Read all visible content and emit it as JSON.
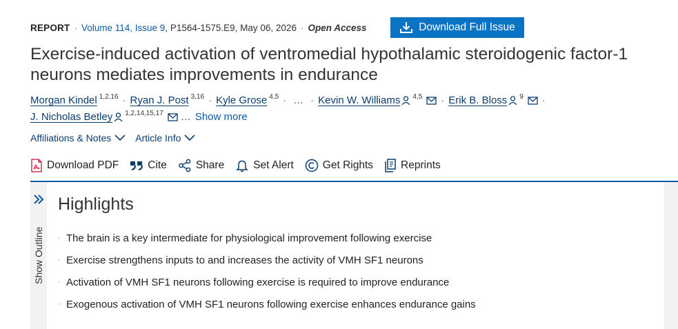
{
  "header": {
    "type_label": "REPORT",
    "volume": "Volume 114, Issue 9",
    "details": "P1564-1575.E9, May 06, 2026",
    "open_access": "Open Access",
    "download_full_issue": "Download Full Issue"
  },
  "article": {
    "title": "Exercise-induced activation of ventromedial hypothalamic steroidogenic factor-1 neurons mediates improvements in endurance"
  },
  "authors": {
    "a1": {
      "name": "Morgan Kindel",
      "sup": "1,2,16"
    },
    "a2": {
      "name": "Ryan J. Post",
      "sup": "3,16"
    },
    "a3": {
      "name": "Kyle Grose",
      "sup": "4,5"
    },
    "ellipsis": "…",
    "a4": {
      "name": "Kevin W. Williams",
      "sup": "4,5"
    },
    "a5": {
      "name": "Erik B. Bloss",
      "sup": "9"
    },
    "a6": {
      "name": "J. Nicholas Betley",
      "sup": "1,2,14,15,17"
    },
    "show_more_ellipsis": "…",
    "show_more": "Show more",
    "dot": "·"
  },
  "links": {
    "affiliations": "Affiliations & Notes",
    "article_info": "Article Info"
  },
  "toolbar": {
    "download_pdf": "Download PDF",
    "cite": "Cite",
    "share": "Share",
    "set_alert": "Set Alert",
    "get_rights": "Get Rights",
    "reprints": "Reprints"
  },
  "outline": {
    "label": "Show Outline"
  },
  "highlights": {
    "title": "Highlights",
    "bullet": "·",
    "items": [
      "The brain is a key intermediate for physiological improvement following exercise",
      "Exercise strengthens inputs to and increases the activity of VMH SF1 neurons",
      "Activation of VMH SF1 neurons following exercise is required to improve endurance",
      "Exogenous activation of VMH SF1 neurons following exercise enhances endurance gains"
    ]
  },
  "colors": {
    "accent": "#0a73c4",
    "link": "#0a3c6e",
    "divider": "#0a5aa0"
  }
}
